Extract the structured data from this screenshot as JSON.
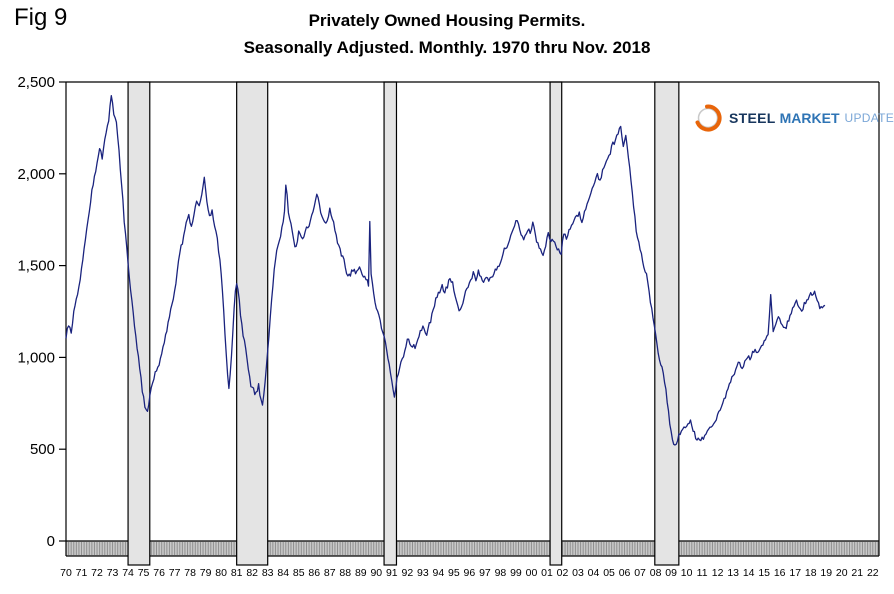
{
  "page": {
    "fig_label": "Fig 9"
  },
  "title": {
    "line1": "Privately Owned Housing Permits.",
    "line2": "Seasonally Adjusted. Monthly. 1970 thru Nov. 2018"
  },
  "logo": {
    "word1": "STEEL",
    "word2": "MARKET",
    "word3": "UPDATE",
    "color_steel": "#17365d",
    "color_market": "#2e74b5",
    "color_update": "#7ba7d7",
    "accent": "#e8650a"
  },
  "chart_data": {
    "type": "line",
    "title": "Privately Owned Housing Permits.",
    "subtitle": "Seasonally Adjusted. Monthly. 1970 thru Nov. 2018",
    "xlabel": "",
    "ylabel": "",
    "ylim": [
      0,
      2500
    ],
    "yticks": [
      0,
      500,
      1000,
      1500,
      2000,
      2500
    ],
    "ytick_labels": [
      "0",
      "500",
      "1,000",
      "1,500",
      "2,000",
      "2,500"
    ],
    "xlim": [
      1970,
      2022.4
    ],
    "xtick_start_year": 1970,
    "xtick_labels": [
      "70",
      "71",
      "72",
      "73",
      "74",
      "75",
      "76",
      "77",
      "78",
      "79",
      "80",
      "81",
      "82",
      "83",
      "84",
      "85",
      "86",
      "87",
      "88",
      "89",
      "90",
      "91",
      "92",
      "93",
      "94",
      "95",
      "96",
      "97",
      "98",
      "99",
      "00",
      "01",
      "02",
      "03",
      "04",
      "05",
      "06",
      "07",
      "08",
      "09",
      "10",
      "11",
      "12",
      "13",
      "14",
      "15",
      "16",
      "17",
      "18",
      "19",
      "20",
      "21",
      "22"
    ],
    "x_end_data": 2018.92,
    "grid": false,
    "legend": "none",
    "monthly_noise": 14,
    "recession_bands": [
      [
        1974.0,
        1975.4
      ],
      [
        1981.0,
        1983.0
      ],
      [
        1990.5,
        1991.3
      ],
      [
        2001.2,
        2001.95
      ],
      [
        2007.95,
        2009.5
      ]
    ],
    "styles": {
      "band_fill": "#e4e4e4",
      "band_border": "#000000",
      "strip_fill": "#c9c9c9",
      "strip_tick": "#8f8f8f",
      "frame": "#000000"
    },
    "series": [
      {
        "name": "Privately owned housing permits",
        "color": "#1a237e",
        "keypoints": [
          [
            1970.0,
            1110
          ],
          [
            1970.17,
            1180
          ],
          [
            1970.33,
            1130
          ],
          [
            1970.5,
            1250
          ],
          [
            1970.67,
            1320
          ],
          [
            1970.83,
            1380
          ],
          [
            1971.0,
            1480
          ],
          [
            1971.25,
            1650
          ],
          [
            1971.5,
            1800
          ],
          [
            1971.75,
            1950
          ],
          [
            1972.0,
            2050
          ],
          [
            1972.17,
            2150
          ],
          [
            1972.33,
            2080
          ],
          [
            1972.5,
            2180
          ],
          [
            1972.75,
            2300
          ],
          [
            1972.92,
            2420
          ],
          [
            1973.08,
            2330
          ],
          [
            1973.25,
            2290
          ],
          [
            1973.42,
            2120
          ],
          [
            1973.58,
            1950
          ],
          [
            1973.75,
            1750
          ],
          [
            1973.92,
            1600
          ],
          [
            1974.08,
            1440
          ],
          [
            1974.25,
            1320
          ],
          [
            1974.42,
            1180
          ],
          [
            1974.58,
            1050
          ],
          [
            1974.75,
            950
          ],
          [
            1974.92,
            820
          ],
          [
            1975.08,
            730
          ],
          [
            1975.25,
            715
          ],
          [
            1975.42,
            790
          ],
          [
            1975.58,
            860
          ],
          [
            1975.75,
            910
          ],
          [
            1975.92,
            950
          ],
          [
            1976.08,
            990
          ],
          [
            1976.25,
            1060
          ],
          [
            1976.42,
            1120
          ],
          [
            1976.58,
            1190
          ],
          [
            1976.75,
            1260
          ],
          [
            1976.92,
            1330
          ],
          [
            1977.08,
            1400
          ],
          [
            1977.25,
            1520
          ],
          [
            1977.42,
            1600
          ],
          [
            1977.58,
            1660
          ],
          [
            1977.75,
            1730
          ],
          [
            1977.92,
            1790
          ],
          [
            1978.08,
            1700
          ],
          [
            1978.25,
            1780
          ],
          [
            1978.42,
            1860
          ],
          [
            1978.58,
            1820
          ],
          [
            1978.75,
            1900
          ],
          [
            1978.92,
            1980
          ],
          [
            1979.08,
            1840
          ],
          [
            1979.25,
            1760
          ],
          [
            1979.42,
            1800
          ],
          [
            1979.58,
            1720
          ],
          [
            1979.75,
            1640
          ],
          [
            1979.92,
            1520
          ],
          [
            1980.08,
            1380
          ],
          [
            1980.25,
            1120
          ],
          [
            1980.42,
            900
          ],
          [
            1980.5,
            830
          ],
          [
            1980.67,
            1020
          ],
          [
            1980.83,
            1250
          ],
          [
            1980.96,
            1400
          ],
          [
            1981.08,
            1380
          ],
          [
            1981.25,
            1240
          ],
          [
            1981.42,
            1120
          ],
          [
            1981.58,
            1040
          ],
          [
            1981.75,
            930
          ],
          [
            1981.92,
            840
          ],
          [
            1982.08,
            820
          ],
          [
            1982.25,
            800
          ],
          [
            1982.42,
            850
          ],
          [
            1982.58,
            760
          ],
          [
            1982.67,
            730
          ],
          [
            1982.83,
            860
          ],
          [
            1982.96,
            1000
          ],
          [
            1983.08,
            1120
          ],
          [
            1983.25,
            1320
          ],
          [
            1983.42,
            1480
          ],
          [
            1983.58,
            1580
          ],
          [
            1983.75,
            1640
          ],
          [
            1983.92,
            1700
          ],
          [
            1984.08,
            1780
          ],
          [
            1984.17,
            1950
          ],
          [
            1984.33,
            1800
          ],
          [
            1984.5,
            1720
          ],
          [
            1984.67,
            1640
          ],
          [
            1984.83,
            1590
          ],
          [
            1985.0,
            1690
          ],
          [
            1985.25,
            1640
          ],
          [
            1985.5,
            1700
          ],
          [
            1985.75,
            1740
          ],
          [
            1986.0,
            1820
          ],
          [
            1986.17,
            1900
          ],
          [
            1986.33,
            1830
          ],
          [
            1986.5,
            1770
          ],
          [
            1986.75,
            1730
          ],
          [
            1987.0,
            1800
          ],
          [
            1987.17,
            1760
          ],
          [
            1987.33,
            1690
          ],
          [
            1987.5,
            1620
          ],
          [
            1987.75,
            1560
          ],
          [
            1987.92,
            1520
          ],
          [
            1988.08,
            1470
          ],
          [
            1988.25,
            1440
          ],
          [
            1988.5,
            1480
          ],
          [
            1988.75,
            1460
          ],
          [
            1988.92,
            1500
          ],
          [
            1989.08,
            1460
          ],
          [
            1989.25,
            1430
          ],
          [
            1989.5,
            1400
          ],
          [
            1989.58,
            1740
          ],
          [
            1989.67,
            1450
          ],
          [
            1989.83,
            1350
          ],
          [
            1990.0,
            1280
          ],
          [
            1990.17,
            1220
          ],
          [
            1990.33,
            1160
          ],
          [
            1990.5,
            1110
          ],
          [
            1990.67,
            1050
          ],
          [
            1990.83,
            960
          ],
          [
            1991.0,
            870
          ],
          [
            1991.17,
            780
          ],
          [
            1991.33,
            880
          ],
          [
            1991.5,
            940
          ],
          [
            1991.67,
            990
          ],
          [
            1991.83,
            1030
          ],
          [
            1992.0,
            1100
          ],
          [
            1992.25,
            1070
          ],
          [
            1992.5,
            1060
          ],
          [
            1992.75,
            1120
          ],
          [
            1993.0,
            1160
          ],
          [
            1993.25,
            1130
          ],
          [
            1993.5,
            1200
          ],
          [
            1993.75,
            1280
          ],
          [
            1993.92,
            1340
          ],
          [
            1994.08,
            1360
          ],
          [
            1994.25,
            1390
          ],
          [
            1994.42,
            1350
          ],
          [
            1994.58,
            1390
          ],
          [
            1994.75,
            1430
          ],
          [
            1994.92,
            1400
          ],
          [
            1995.08,
            1330
          ],
          [
            1995.25,
            1270
          ],
          [
            1995.42,
            1250
          ],
          [
            1995.58,
            1300
          ],
          [
            1995.75,
            1350
          ],
          [
            1995.92,
            1390
          ],
          [
            1996.08,
            1420
          ],
          [
            1996.25,
            1460
          ],
          [
            1996.42,
            1420
          ],
          [
            1996.58,
            1470
          ],
          [
            1996.75,
            1430
          ],
          [
            1996.92,
            1400
          ],
          [
            1997.08,
            1440
          ],
          [
            1997.25,
            1420
          ],
          [
            1997.5,
            1450
          ],
          [
            1997.75,
            1480
          ],
          [
            1997.92,
            1510
          ],
          [
            1998.08,
            1540
          ],
          [
            1998.25,
            1590
          ],
          [
            1998.5,
            1620
          ],
          [
            1998.75,
            1680
          ],
          [
            1998.92,
            1720
          ],
          [
            1999.08,
            1750
          ],
          [
            1999.25,
            1680
          ],
          [
            1999.5,
            1650
          ],
          [
            1999.75,
            1700
          ],
          [
            1999.92,
            1680
          ],
          [
            2000.08,
            1740
          ],
          [
            2000.25,
            1660
          ],
          [
            2000.5,
            1590
          ],
          [
            2000.75,
            1560
          ],
          [
            2000.92,
            1600
          ],
          [
            2001.08,
            1680
          ],
          [
            2001.25,
            1640
          ],
          [
            2001.5,
            1620
          ],
          [
            2001.75,
            1580
          ],
          [
            2001.92,
            1570
          ],
          [
            2002.08,
            1680
          ],
          [
            2002.25,
            1650
          ],
          [
            2002.5,
            1700
          ],
          [
            2002.75,
            1740
          ],
          [
            2002.92,
            1770
          ],
          [
            2003.08,
            1780
          ],
          [
            2003.25,
            1740
          ],
          [
            2003.5,
            1810
          ],
          [
            2003.75,
            1880
          ],
          [
            2003.92,
            1920
          ],
          [
            2004.08,
            1960
          ],
          [
            2004.25,
            1990
          ],
          [
            2004.42,
            1960
          ],
          [
            2004.58,
            2020
          ],
          [
            2004.75,
            2060
          ],
          [
            2004.92,
            2080
          ],
          [
            2005.08,
            2120
          ],
          [
            2005.25,
            2160
          ],
          [
            2005.42,
            2180
          ],
          [
            2005.58,
            2230
          ],
          [
            2005.75,
            2260
          ],
          [
            2005.92,
            2160
          ],
          [
            2006.08,
            2200
          ],
          [
            2006.25,
            2090
          ],
          [
            2006.42,
            1960
          ],
          [
            2006.58,
            1820
          ],
          [
            2006.75,
            1700
          ],
          [
            2006.92,
            1620
          ],
          [
            2007.08,
            1560
          ],
          [
            2007.25,
            1500
          ],
          [
            2007.42,
            1450
          ],
          [
            2007.58,
            1360
          ],
          [
            2007.75,
            1260
          ],
          [
            2007.92,
            1160
          ],
          [
            2008.08,
            1080
          ],
          [
            2008.25,
            980
          ],
          [
            2008.42,
            960
          ],
          [
            2008.58,
            870
          ],
          [
            2008.75,
            760
          ],
          [
            2008.92,
            640
          ],
          [
            2009.08,
            550
          ],
          [
            2009.25,
            520
          ],
          [
            2009.42,
            560
          ],
          [
            2009.58,
            580
          ],
          [
            2009.75,
            600
          ],
          [
            2009.92,
            620
          ],
          [
            2010.08,
            630
          ],
          [
            2010.25,
            670
          ],
          [
            2010.42,
            600
          ],
          [
            2010.58,
            570
          ],
          [
            2010.75,
            550
          ],
          [
            2010.92,
            560
          ],
          [
            2011.08,
            560
          ],
          [
            2011.25,
            580
          ],
          [
            2011.5,
            610
          ],
          [
            2011.75,
            640
          ],
          [
            2011.92,
            660
          ],
          [
            2012.08,
            700
          ],
          [
            2012.25,
            740
          ],
          [
            2012.5,
            790
          ],
          [
            2012.75,
            850
          ],
          [
            2012.92,
            890
          ],
          [
            2013.08,
            910
          ],
          [
            2013.25,
            950
          ],
          [
            2013.42,
            980
          ],
          [
            2013.58,
            940
          ],
          [
            2013.75,
            970
          ],
          [
            2013.92,
            990
          ],
          [
            2014.08,
            1000
          ],
          [
            2014.25,
            1020
          ],
          [
            2014.42,
            1050
          ],
          [
            2014.58,
            1030
          ],
          [
            2014.75,
            1060
          ],
          [
            2014.92,
            1070
          ],
          [
            2015.08,
            1090
          ],
          [
            2015.25,
            1120
          ],
          [
            2015.42,
            1340
          ],
          [
            2015.58,
            1150
          ],
          [
            2015.75,
            1190
          ],
          [
            2015.92,
            1220
          ],
          [
            2016.08,
            1180
          ],
          [
            2016.25,
            1150
          ],
          [
            2016.42,
            1170
          ],
          [
            2016.58,
            1210
          ],
          [
            2016.75,
            1250
          ],
          [
            2016.92,
            1280
          ],
          [
            2017.08,
            1300
          ],
          [
            2017.25,
            1270
          ],
          [
            2017.42,
            1250
          ],
          [
            2017.58,
            1290
          ],
          [
            2017.75,
            1310
          ],
          [
            2017.92,
            1330
          ],
          [
            2018.08,
            1350
          ],
          [
            2018.25,
            1360
          ],
          [
            2018.42,
            1310
          ],
          [
            2018.58,
            1270
          ],
          [
            2018.75,
            1260
          ],
          [
            2018.92,
            1280
          ]
        ]
      }
    ]
  }
}
